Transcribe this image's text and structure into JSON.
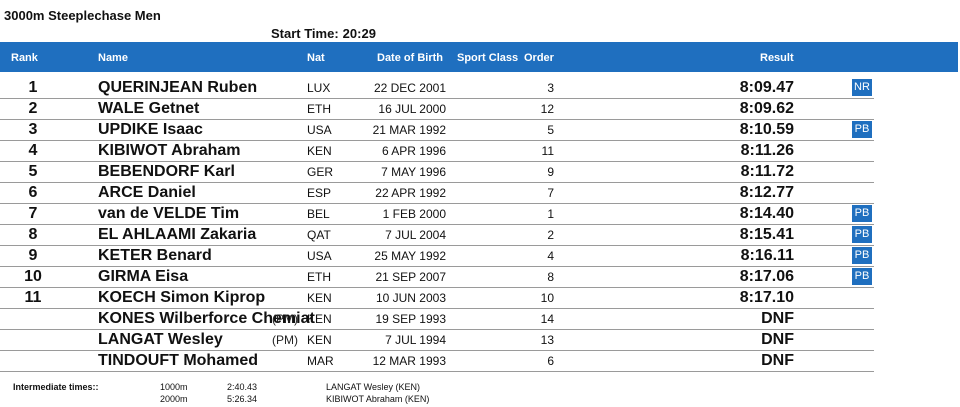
{
  "event": {
    "title": "3000m Steeplechase Men",
    "start_label": "Start Time:",
    "start_time": "20:29"
  },
  "columns": {
    "rank": "Rank",
    "name": "Name",
    "nat": "Nat",
    "dob": "Date of Birth",
    "sport_class": "Sport Class",
    "order": "Order",
    "result": "Result"
  },
  "rows": [
    {
      "rank": "1",
      "name": "QUERINJEAN Ruben",
      "pm": "",
      "nat": "LUX",
      "dob": "22 DEC 2001",
      "order": "3",
      "result": "8:09.47",
      "badge": "NR"
    },
    {
      "rank": "2",
      "name": "WALE Getnet",
      "pm": "",
      "nat": "ETH",
      "dob": "16 JUL 2000",
      "order": "12",
      "result": "8:09.62",
      "badge": ""
    },
    {
      "rank": "3",
      "name": "UPDIKE Isaac",
      "pm": "",
      "nat": "USA",
      "dob": "21 MAR 1992",
      "order": "5",
      "result": "8:10.59",
      "badge": "PB"
    },
    {
      "rank": "4",
      "name": "KIBIWOT Abraham",
      "pm": "",
      "nat": "KEN",
      "dob": "6 APR 1996",
      "order": "11",
      "result": "8:11.26",
      "badge": ""
    },
    {
      "rank": "5",
      "name": "BEBENDORF Karl",
      "pm": "",
      "nat": "GER",
      "dob": "7 MAY 1996",
      "order": "9",
      "result": "8:11.72",
      "badge": ""
    },
    {
      "rank": "6",
      "name": "ARCE Daniel",
      "pm": "",
      "nat": "ESP",
      "dob": "22 APR 1992",
      "order": "7",
      "result": "8:12.77",
      "badge": ""
    },
    {
      "rank": "7",
      "name": "van de VELDE Tim",
      "pm": "",
      "nat": "BEL",
      "dob": "1 FEB 2000",
      "order": "1",
      "result": "8:14.40",
      "badge": "PB"
    },
    {
      "rank": "8",
      "name": "EL AHLAAMI Zakaria",
      "pm": "",
      "nat": "QAT",
      "dob": "7 JUL 2004",
      "order": "2",
      "result": "8:15.41",
      "badge": "PB"
    },
    {
      "rank": "9",
      "name": "KETER Benard",
      "pm": "",
      "nat": "USA",
      "dob": "25 MAY 1992",
      "order": "4",
      "result": "8:16.11",
      "badge": "PB"
    },
    {
      "rank": "10",
      "name": "GIRMA Eisa",
      "pm": "",
      "nat": "ETH",
      "dob": "21 SEP 2007",
      "order": "8",
      "result": "8:17.06",
      "badge": "PB"
    },
    {
      "rank": "11",
      "name": "KOECH Simon Kiprop",
      "pm": "",
      "nat": "KEN",
      "dob": "10 JUN 2003",
      "order": "10",
      "result": "8:17.10",
      "badge": ""
    },
    {
      "rank": "",
      "name": "KONES Wilberforce Chemiat",
      "pm": "(PM)",
      "nat": "KEN",
      "dob": "19 SEP 1993",
      "order": "14",
      "result": "DNF",
      "badge": ""
    },
    {
      "rank": "",
      "name": "LANGAT Wesley",
      "pm": "(PM)",
      "nat": "KEN",
      "dob": "7 JUL 1994",
      "order": "13",
      "result": "DNF",
      "badge": ""
    },
    {
      "rank": "",
      "name": "TINDOUFT Mohamed",
      "pm": "",
      "nat": "MAR",
      "dob": "12 MAR 1993",
      "order": "6",
      "result": "DNF",
      "badge": ""
    }
  ],
  "intermediate": {
    "label": "Intermediate times::",
    "splits": [
      {
        "distance": "1000m",
        "time": "2:40.43",
        "athlete": "LANGAT Wesley (KEN)"
      },
      {
        "distance": "2000m",
        "time": "5:26.34",
        "athlete": "KIBIWOT Abraham (KEN)"
      }
    ]
  }
}
